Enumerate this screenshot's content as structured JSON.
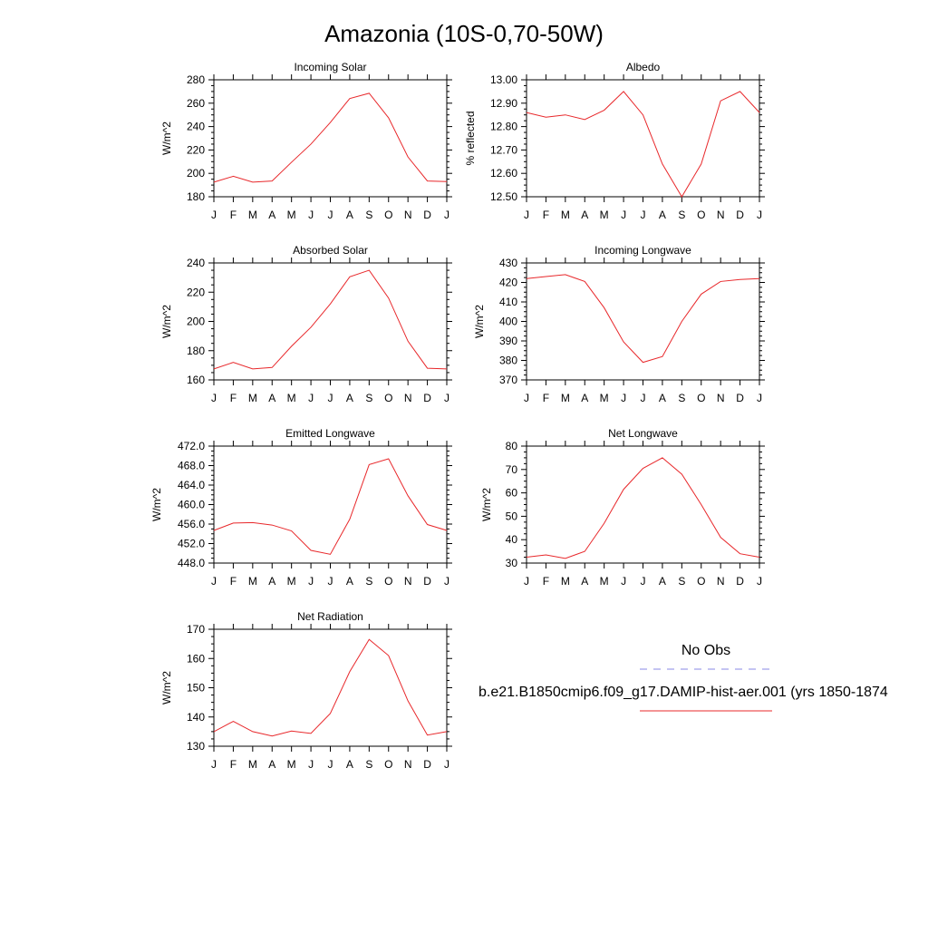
{
  "page": {
    "title": "Amazonia (10S-0,70-50W)"
  },
  "months": [
    "J",
    "F",
    "M",
    "A",
    "M",
    "J",
    "J",
    "A",
    "S",
    "O",
    "N",
    "D",
    "J"
  ],
  "line_color": "#e8282b",
  "obs_color": "#8a8ae6",
  "legend": {
    "obs_label": "No Obs",
    "model_label": "b.e21.B1850cmip6.f09_g17.DAMIP-hist-aer.001 (yrs 1850-1874"
  },
  "chart_data": [
    {
      "type": "line",
      "title": "Incoming Solar",
      "ylabel": "W/m^2",
      "ylim": [
        180,
        280
      ],
      "yticks": [
        "280",
        "260",
        "240",
        "220",
        "200",
        "180"
      ],
      "x": [
        "J",
        "F",
        "M",
        "A",
        "M",
        "J",
        "J",
        "A",
        "S",
        "O",
        "N",
        "D",
        "J"
      ],
      "series": [
        {
          "values": [
            192.5,
            197.5,
            192.5,
            193.5,
            209.5,
            225,
            243.5,
            264,
            268.5,
            247.5,
            214,
            193.5,
            193
          ]
        }
      ]
    },
    {
      "type": "line",
      "title": "Albedo",
      "ylabel": "% reflected",
      "ylim": [
        12.5,
        13.0
      ],
      "yticks": [
        "13.00",
        "12.90",
        "12.80",
        "12.70",
        "12.60",
        "12.50"
      ],
      "x": [
        "J",
        "F",
        "M",
        "A",
        "M",
        "J",
        "J",
        "A",
        "S",
        "O",
        "N",
        "D",
        "J"
      ],
      "series": [
        {
          "values": [
            12.86,
            12.84,
            12.85,
            12.83,
            12.87,
            12.95,
            12.85,
            12.64,
            12.5,
            12.64,
            12.91,
            12.95,
            12.86
          ]
        }
      ]
    },
    {
      "type": "line",
      "title": "Absorbed Solar",
      "ylabel": "W/m^2",
      "ylim": [
        160,
        240
      ],
      "yticks": [
        "240",
        "220",
        "200",
        "180",
        "160"
      ],
      "x": [
        "J",
        "F",
        "M",
        "A",
        "M",
        "J",
        "J",
        "A",
        "S",
        "O",
        "N",
        "D",
        "J"
      ],
      "series": [
        {
          "values": [
            167.5,
            172,
            167.5,
            168.5,
            183,
            196,
            212,
            230.5,
            235,
            216,
            186.5,
            168,
            167.5
          ]
        }
      ]
    },
    {
      "type": "line",
      "title": "Incoming Longwave",
      "ylabel": "W/m^2",
      "ylim": [
        370,
        430
      ],
      "yticks": [
        "430",
        "420",
        "410",
        "400",
        "390",
        "380",
        "370"
      ],
      "x": [
        "J",
        "F",
        "M",
        "A",
        "M",
        "J",
        "J",
        "A",
        "S",
        "O",
        "N",
        "D",
        "J"
      ],
      "series": [
        {
          "values": [
            422,
            423,
            424,
            420.5,
            407,
            389.5,
            379,
            382,
            400,
            414,
            420.5,
            421.5,
            422
          ]
        }
      ]
    },
    {
      "type": "line",
      "title": "Emitted Longwave",
      "ylabel": "W/m^2",
      "ylim": [
        448,
        472
      ],
      "yticks": [
        "472.0",
        "468.0",
        "464.0",
        "460.0",
        "456.0",
        "452.0",
        "448.0"
      ],
      "x": [
        "J",
        "F",
        "M",
        "A",
        "M",
        "J",
        "J",
        "A",
        "S",
        "O",
        "N",
        "D",
        "J"
      ],
      "series": [
        {
          "values": [
            454.7,
            456.2,
            456.3,
            455.8,
            454.6,
            450.6,
            449.8,
            457,
            468.2,
            469.4,
            461.8,
            455.9,
            454.7
          ]
        }
      ]
    },
    {
      "type": "line",
      "title": "Net Longwave",
      "ylabel": "W/m^2",
      "ylim": [
        30,
        80
      ],
      "yticks": [
        "80",
        "70",
        "60",
        "50",
        "40",
        "30"
      ],
      "x": [
        "J",
        "F",
        "M",
        "A",
        "M",
        "J",
        "J",
        "A",
        "S",
        "O",
        "N",
        "D",
        "J"
      ],
      "series": [
        {
          "values": [
            32.5,
            33.5,
            32,
            35,
            47,
            61.5,
            70.5,
            75,
            68,
            55,
            41,
            34,
            32.5
          ]
        }
      ]
    },
    {
      "type": "line",
      "title": "Net Radiation",
      "ylabel": "W/m^2",
      "ylim": [
        130,
        170
      ],
      "yticks": [
        "170",
        "160",
        "150",
        "140",
        "130"
      ],
      "x": [
        "J",
        "F",
        "M",
        "A",
        "M",
        "J",
        "J",
        "A",
        "S",
        "O",
        "N",
        "D",
        "J"
      ],
      "series": [
        {
          "values": [
            135,
            138.5,
            135,
            133.5,
            135.2,
            134.4,
            141.2,
            155.5,
            166.5,
            161,
            145.5,
            133.8,
            135
          ]
        }
      ]
    }
  ]
}
